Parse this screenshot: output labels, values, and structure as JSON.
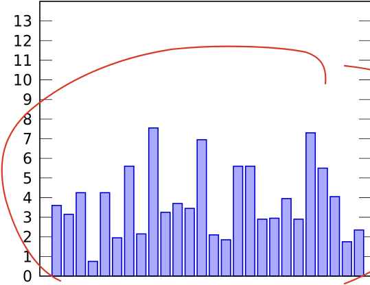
{
  "chart_data": {
    "type": "bar",
    "title": "",
    "xlabel": "",
    "ylabel": "",
    "ylim": [
      0,
      14
    ],
    "yticks": [
      0,
      1,
      2,
      3,
      4,
      5,
      6,
      7,
      8,
      9,
      10,
      11,
      12,
      13
    ],
    "x_tick_labels_shown": false,
    "grid": false,
    "legend": "none",
    "values": [
      3.6,
      3.15,
      4.25,
      0.75,
      4.25,
      1.95,
      5.6,
      2.15,
      7.55,
      3.25,
      3.7,
      3.45,
      6.95,
      2.1,
      1.85,
      5.6,
      5.6,
      2.9,
      2.95,
      3.95,
      2.9,
      7.3,
      5.5,
      4.05,
      1.75,
      2.35
    ],
    "colors": {
      "bar_fill": "#aaaaff",
      "bar_stroke": "#0000cc",
      "axis": "#000000",
      "annotation": "#d83a24"
    },
    "annotations": [
      {
        "type": "freehand-circle-stroke",
        "color": "#d83a24"
      }
    ]
  }
}
